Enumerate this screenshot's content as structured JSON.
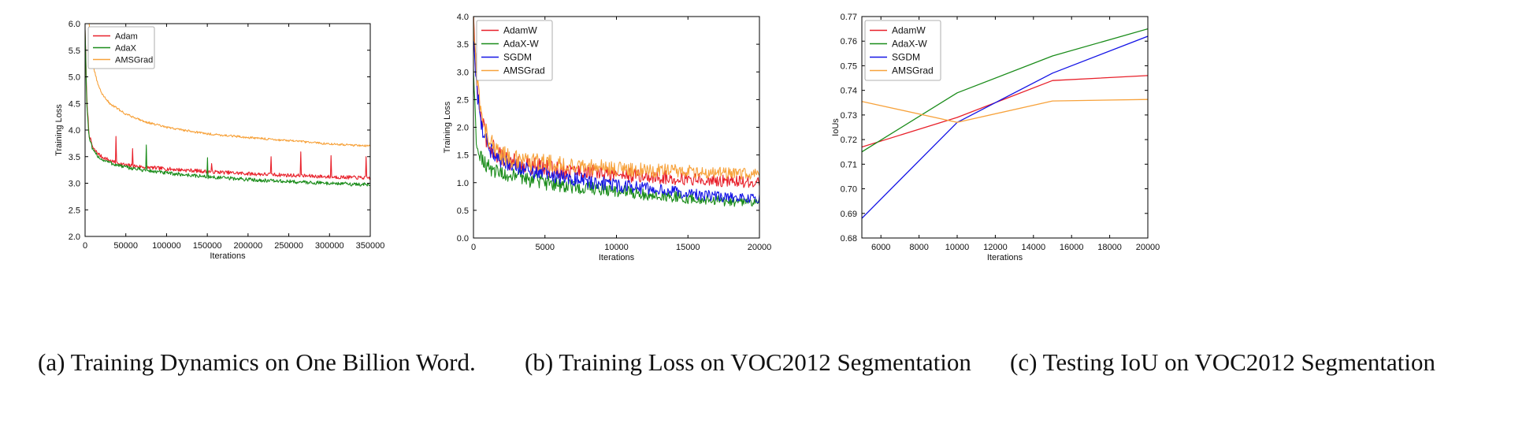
{
  "colors": {
    "red": "#e8202a",
    "green": "#1a8c1a",
    "blue": "#1414e6",
    "orange": "#f7a23b"
  },
  "captions": {
    "a": "(a) Training Dynamics on One Billion Word.",
    "b": "(b) Training Loss on VOC2012 Segmentation",
    "c": "(c) Testing IoU on VOC2012 Segmentation"
  },
  "chart_data": [
    {
      "id": "a",
      "type": "line",
      "title": "",
      "xlabel": "Iterations",
      "ylabel": "Training Loss",
      "xlim": [
        0,
        350000
      ],
      "ylim": [
        2.0,
        6.0
      ],
      "xticks": [
        0,
        50000,
        100000,
        150000,
        200000,
        250000,
        300000,
        350000
      ],
      "yticks": [
        2.0,
        2.5,
        3.0,
        3.5,
        4.0,
        4.5,
        5.0,
        5.5,
        6.0
      ],
      "xtick_labels": [
        "0",
        "50000",
        "100000",
        "150000",
        "200000",
        "250000",
        "300000",
        "350000"
      ],
      "ytick_labels": [
        "2.0",
        "2.5",
        "3.0",
        "3.5",
        "4.0",
        "4.5",
        "5.0",
        "5.5",
        "6.0"
      ],
      "legend_position": "top-left",
      "series": [
        {
          "name": "Adam",
          "color": "red",
          "x": [
            0,
            2000,
            5000,
            10000,
            20000,
            35000,
            50000,
            75000,
            100000,
            150000,
            200000,
            250000,
            300000,
            350000
          ],
          "y": [
            5.9,
            4.6,
            3.9,
            3.65,
            3.5,
            3.4,
            3.34,
            3.3,
            3.27,
            3.22,
            3.18,
            3.15,
            3.12,
            3.1
          ],
          "noise": 0.035,
          "spikes": [
            [
              38000,
              3.88
            ],
            [
              58000,
              3.65
            ],
            [
              155000,
              3.37
            ],
            [
              228000,
              3.5
            ],
            [
              265000,
              3.59
            ],
            [
              302000,
              3.52
            ],
            [
              345000,
              3.5
            ]
          ]
        },
        {
          "name": "AdaX",
          "color": "green",
          "x": [
            0,
            2000,
            5000,
            10000,
            20000,
            35000,
            50000,
            75000,
            100000,
            150000,
            200000,
            250000,
            300000,
            350000
          ],
          "y": [
            5.9,
            4.5,
            3.85,
            3.6,
            3.45,
            3.36,
            3.3,
            3.24,
            3.19,
            3.12,
            3.07,
            3.03,
            3.0,
            2.97
          ],
          "noise": 0.035,
          "spikes": [
            [
              75000,
              3.72
            ],
            [
              150000,
              3.48
            ]
          ]
        },
        {
          "name": "AMSGrad",
          "color": "orange",
          "x": [
            5000,
            10000,
            15000,
            20000,
            30000,
            50000,
            75000,
            100000,
            150000,
            200000,
            250000,
            300000,
            350000
          ],
          "y": [
            6.0,
            5.2,
            4.9,
            4.7,
            4.5,
            4.3,
            4.15,
            4.05,
            3.93,
            3.86,
            3.8,
            3.74,
            3.7
          ],
          "noise": 0.02,
          "spikes": []
        }
      ]
    },
    {
      "id": "b",
      "type": "line",
      "title": "",
      "xlabel": "Iterations",
      "ylabel": "Training Loss",
      "xlim": [
        0,
        20000
      ],
      "ylim": [
        0.0,
        4.0
      ],
      "xticks": [
        0,
        5000,
        10000,
        15000,
        20000
      ],
      "yticks": [
        0.0,
        0.5,
        1.0,
        1.5,
        2.0,
        2.5,
        3.0,
        3.5,
        4.0
      ],
      "xtick_labels": [
        "0",
        "5000",
        "10000",
        "15000",
        "20000"
      ],
      "ytick_labels": [
        "0.0",
        "0.5",
        "1.0",
        "1.5",
        "2.0",
        "2.5",
        "3.0",
        "3.5",
        "4.0"
      ],
      "legend_position": "top-left",
      "series": [
        {
          "name": "AdamW",
          "color": "red",
          "x": [
            0,
            200,
            500,
            1000,
            2000,
            3000,
            5000,
            7500,
            10000,
            12500,
            15000,
            17500,
            20000
          ],
          "y": [
            4.0,
            2.9,
            2.2,
            1.7,
            1.45,
            1.35,
            1.25,
            1.2,
            1.15,
            1.1,
            1.07,
            1.03,
            1.0
          ],
          "noise": 0.14
        },
        {
          "name": "AdaX-W",
          "color": "green",
          "x": [
            0,
            200,
            500,
            1000,
            2000,
            3000,
            5000,
            7500,
            10000,
            12500,
            15000,
            17500,
            20000
          ],
          "y": [
            3.0,
            1.8,
            1.5,
            1.3,
            1.15,
            1.1,
            1.0,
            0.9,
            0.85,
            0.78,
            0.72,
            0.67,
            0.62
          ],
          "noise": 0.12
        },
        {
          "name": "SGDM",
          "color": "blue",
          "x": [
            0,
            200,
            500,
            1000,
            2000,
            3000,
            5000,
            7500,
            10000,
            12500,
            15000,
            17500,
            20000
          ],
          "y": [
            3.8,
            2.8,
            2.1,
            1.65,
            1.4,
            1.3,
            1.15,
            1.05,
            0.95,
            0.88,
            0.8,
            0.74,
            0.7
          ],
          "noise": 0.12
        },
        {
          "name": "AMSGrad",
          "color": "orange",
          "x": [
            0,
            200,
            500,
            1000,
            2000,
            3000,
            5000,
            7500,
            10000,
            12500,
            15000,
            17500,
            20000
          ],
          "y": [
            4.0,
            3.0,
            2.3,
            1.8,
            1.5,
            1.42,
            1.35,
            1.3,
            1.25,
            1.22,
            1.2,
            1.17,
            1.15
          ],
          "noise": 0.14
        }
      ]
    },
    {
      "id": "c",
      "type": "line",
      "title": "",
      "xlabel": "Iterations",
      "ylabel": "IoUs",
      "xlim": [
        5000,
        20000
      ],
      "ylim": [
        0.68,
        0.77
      ],
      "xticks": [
        6000,
        8000,
        10000,
        12000,
        14000,
        16000,
        18000,
        20000
      ],
      "yticks": [
        0.68,
        0.69,
        0.7,
        0.71,
        0.72,
        0.73,
        0.74,
        0.75,
        0.76,
        0.77
      ],
      "xtick_labels": [
        "6000",
        "8000",
        "10000",
        "12000",
        "14000",
        "16000",
        "18000",
        "20000"
      ],
      "ytick_labels": [
        "0.68",
        "0.69",
        "0.70",
        "0.71",
        "0.72",
        "0.73",
        "0.74",
        "0.75",
        "0.76",
        "0.77"
      ],
      "legend_position": "top-left",
      "series": [
        {
          "name": "AdamW",
          "color": "red",
          "x": [
            5000,
            10000,
            15000,
            20000
          ],
          "y": [
            0.717,
            0.729,
            0.744,
            0.746
          ]
        },
        {
          "name": "AdaX-W",
          "color": "green",
          "x": [
            5000,
            10000,
            15000,
            20000
          ],
          "y": [
            0.715,
            0.739,
            0.754,
            0.765
          ]
        },
        {
          "name": "SGDM",
          "color": "blue",
          "x": [
            5000,
            10000,
            15000,
            20000
          ],
          "y": [
            0.688,
            0.727,
            0.747,
            0.762
          ]
        },
        {
          "name": "AMSGrad",
          "color": "orange",
          "x": [
            5000,
            10000,
            15000,
            20000
          ],
          "y": [
            0.7355,
            0.727,
            0.7357,
            0.7363
          ]
        }
      ]
    }
  ]
}
